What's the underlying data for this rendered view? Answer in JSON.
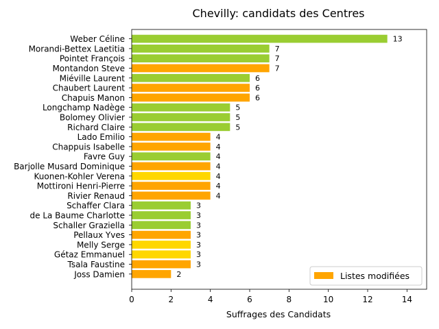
{
  "chart_data": {
    "type": "bar",
    "orientation": "horizontal",
    "title": "Chevilly: candidats des Centres",
    "xlabel": "Suffrages des Candidats",
    "ylabel": "",
    "xlim": [
      0,
      15
    ],
    "xticks": [
      0,
      2,
      4,
      6,
      8,
      10,
      12,
      14
    ],
    "grid": false,
    "legend": {
      "placement": "bottom-right",
      "entries": [
        {
          "label": "Listes modifiées",
          "color": "#FFA500"
        }
      ]
    },
    "colors": {
      "green": "#9ACD32",
      "orange": "#FFA500",
      "yellow": "#FFD700"
    },
    "bars": [
      {
        "label": "Weber Céline",
        "value": 13,
        "color": "#9ACD32"
      },
      {
        "label": "Morandi-Bettex Laetitia",
        "value": 7,
        "color": "#9ACD32"
      },
      {
        "label": "Pointet François",
        "value": 7,
        "color": "#9ACD32"
      },
      {
        "label": "Montandon Steve",
        "value": 7,
        "color": "#FFA500"
      },
      {
        "label": "Miéville Laurent",
        "value": 6,
        "color": "#9ACD32"
      },
      {
        "label": "Chaubert Laurent",
        "value": 6,
        "color": "#FFA500"
      },
      {
        "label": "Chapuis Manon",
        "value": 6,
        "color": "#FFA500"
      },
      {
        "label": "Longchamp Nadège",
        "value": 5,
        "color": "#9ACD32"
      },
      {
        "label": "Bolomey Olivier",
        "value": 5,
        "color": "#9ACD32"
      },
      {
        "label": "Richard Claire",
        "value": 5,
        "color": "#9ACD32"
      },
      {
        "label": "Lado Emilio",
        "value": 4,
        "color": "#FFA500"
      },
      {
        "label": "Chappuis Isabelle",
        "value": 4,
        "color": "#FFA500"
      },
      {
        "label": "Favre Guy",
        "value": 4,
        "color": "#9ACD32"
      },
      {
        "label": "Barjolle Musard Dominique",
        "value": 4,
        "color": "#FFA500"
      },
      {
        "label": "Kuonen-Kohler Verena",
        "value": 4,
        "color": "#FFD700"
      },
      {
        "label": "Mottironi Henri-Pierre",
        "value": 4,
        "color": "#FFA500"
      },
      {
        "label": "Rivier Renaud",
        "value": 4,
        "color": "#FFA500"
      },
      {
        "label": "Schaffer Clara",
        "value": 3,
        "color": "#9ACD32"
      },
      {
        "label": "de La Baume Charlotte",
        "value": 3,
        "color": "#9ACD32"
      },
      {
        "label": "Schaller Graziella",
        "value": 3,
        "color": "#9ACD32"
      },
      {
        "label": "Pellaux Yves",
        "value": 3,
        "color": "#FFA500"
      },
      {
        "label": "Melly Serge",
        "value": 3,
        "color": "#FFD700"
      },
      {
        "label": "Gétaz Emmanuel",
        "value": 3,
        "color": "#FFD700"
      },
      {
        "label": "Tsala Faustine",
        "value": 3,
        "color": "#FFA500"
      },
      {
        "label": "Joss Damien",
        "value": 2,
        "color": "#FFA500"
      }
    ]
  }
}
